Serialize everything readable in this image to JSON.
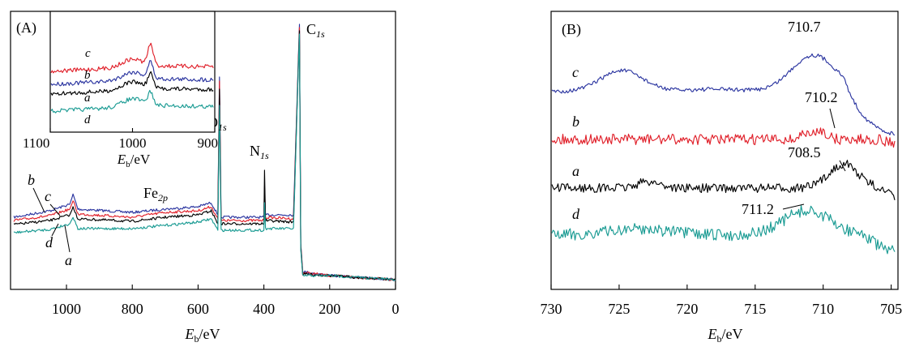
{
  "chart_data": [
    {
      "panel": "(A)",
      "type": "line",
      "title": "",
      "xlabel": "E_b/eV",
      "xlabel_main": "E",
      "xlabel_sub": "b",
      "xlabel_unit": "/eV",
      "xlim": [
        1170,
        0
      ],
      "xticks": [
        1000,
        800,
        600,
        400,
        200,
        0
      ],
      "xtick_labels": [
        "1000",
        "800",
        "600",
        "400",
        "200",
        "0"
      ],
      "ylabel": "",
      "series": [
        {
          "name": "b",
          "color": "#2b35a0",
          "values": [
            [
              1160,
              268
            ],
            [
              1050,
              260
            ],
            [
              990,
              252
            ],
            [
              980,
              240
            ],
            [
              965,
              258
            ],
            [
              800,
              262
            ],
            [
              700,
              258
            ],
            [
              600,
              255
            ],
            [
              560,
              250
            ],
            [
              540,
              265
            ],
            [
              535,
              95
            ],
            [
              530,
              268
            ],
            [
              400,
              268
            ],
            [
              398,
              230
            ],
            [
              395,
              265
            ],
            [
              310,
              265
            ],
            [
              292,
              30
            ],
            [
              288,
              300
            ],
            [
              282,
              335
            ],
            [
              200,
              340
            ],
            [
              0,
              345
            ]
          ]
        },
        {
          "name": "c",
          "color": "#e0202a",
          "values": [
            [
              1160,
              272
            ],
            [
              1050,
              266
            ],
            [
              990,
              258
            ],
            [
              980,
              248
            ],
            [
              965,
              264
            ],
            [
              800,
              268
            ],
            [
              700,
              262
            ],
            [
              600,
              260
            ],
            [
              560,
              255
            ],
            [
              540,
              270
            ],
            [
              535,
              100
            ],
            [
              530,
              272
            ],
            [
              400,
              272
            ],
            [
              398,
              232
            ],
            [
              395,
              268
            ],
            [
              310,
              270
            ],
            [
              292,
              34
            ],
            [
              288,
              302
            ],
            [
              282,
              336
            ],
            [
              200,
              340
            ],
            [
              0,
              345
            ]
          ]
        },
        {
          "name": "a",
          "color": "#000000",
          "values": [
            [
              1160,
              277
            ],
            [
              1050,
              272
            ],
            [
              990,
              265
            ],
            [
              980,
              256
            ],
            [
              965,
              270
            ],
            [
              800,
              273
            ],
            [
              700,
              268
            ],
            [
              600,
              265
            ],
            [
              560,
              260
            ],
            [
              540,
              276
            ],
            [
              535,
              110
            ],
            [
              530,
              276
            ],
            [
              400,
              276
            ],
            [
              398,
              210
            ],
            [
              395,
              272
            ],
            [
              310,
              274
            ],
            [
              292,
              38
            ],
            [
              288,
              305
            ],
            [
              282,
              338
            ],
            [
              200,
              340
            ],
            [
              0,
              345
            ]
          ]
        },
        {
          "name": "d",
          "color": "#1a9b93",
          "values": [
            [
              1160,
              287
            ],
            [
              1050,
              283
            ],
            [
              990,
              276
            ],
            [
              980,
              268
            ],
            [
              965,
              282
            ],
            [
              800,
              282
            ],
            [
              700,
              278
            ],
            [
              600,
              274
            ],
            [
              560,
              270
            ],
            [
              540,
              284
            ],
            [
              535,
              130
            ],
            [
              530,
              284
            ],
            [
              400,
              284
            ],
            [
              398,
              250
            ],
            [
              395,
              282
            ],
            [
              310,
              282
            ],
            [
              292,
              42
            ],
            [
              288,
              308
            ],
            [
              282,
              340
            ],
            [
              200,
              340
            ],
            [
              0,
              345
            ]
          ]
        }
      ],
      "annotations": [
        {
          "text": "C",
          "sub": "1s",
          "energy": 285
        },
        {
          "text": "O",
          "sub": "1s",
          "energy": 531
        },
        {
          "text": "N",
          "sub": "1s",
          "energy": 399
        },
        {
          "text": "Fe",
          "sub": "2p",
          "energy": 711
        }
      ],
      "curve_labels": [
        "b",
        "c",
        "d",
        "a"
      ],
      "inset": {
        "type": "line",
        "xlim": [
          1100,
          900
        ],
        "xticks": [
          1100,
          1000,
          900
        ],
        "xtick_labels": [
          "1100",
          "1000",
          "900"
        ],
        "xlabel_main": "E",
        "xlabel_sub": "b",
        "xlabel_unit": "/eV",
        "curve_labels": [
          "c",
          "b",
          "a",
          "d"
        ]
      }
    },
    {
      "panel": "(B)",
      "type": "line",
      "title": "",
      "xlabel": "E_b/eV",
      "xlabel_main": "E",
      "xlabel_sub": "b",
      "xlabel_unit": "/eV",
      "xlim": [
        730,
        704.5
      ],
      "xticks": [
        730,
        725,
        720,
        715,
        710,
        705
      ],
      "xtick_labels": [
        "730",
        "725",
        "720",
        "715",
        "710",
        "705"
      ],
      "ylabel": "",
      "series": [
        {
          "name": "c",
          "color": "#2b35a0",
          "peak": 710.7
        },
        {
          "name": "b",
          "color": "#e0202a",
          "peak": 710.2
        },
        {
          "name": "a",
          "color": "#000000",
          "peak": 708.5
        },
        {
          "name": "d",
          "color": "#1a9b93",
          "peak": 711.2
        }
      ],
      "peak_labels": [
        "710.7",
        "710.2",
        "708.5",
        "711.2"
      ],
      "curve_labels": [
        "c",
        "b",
        "a",
        "d"
      ]
    }
  ]
}
